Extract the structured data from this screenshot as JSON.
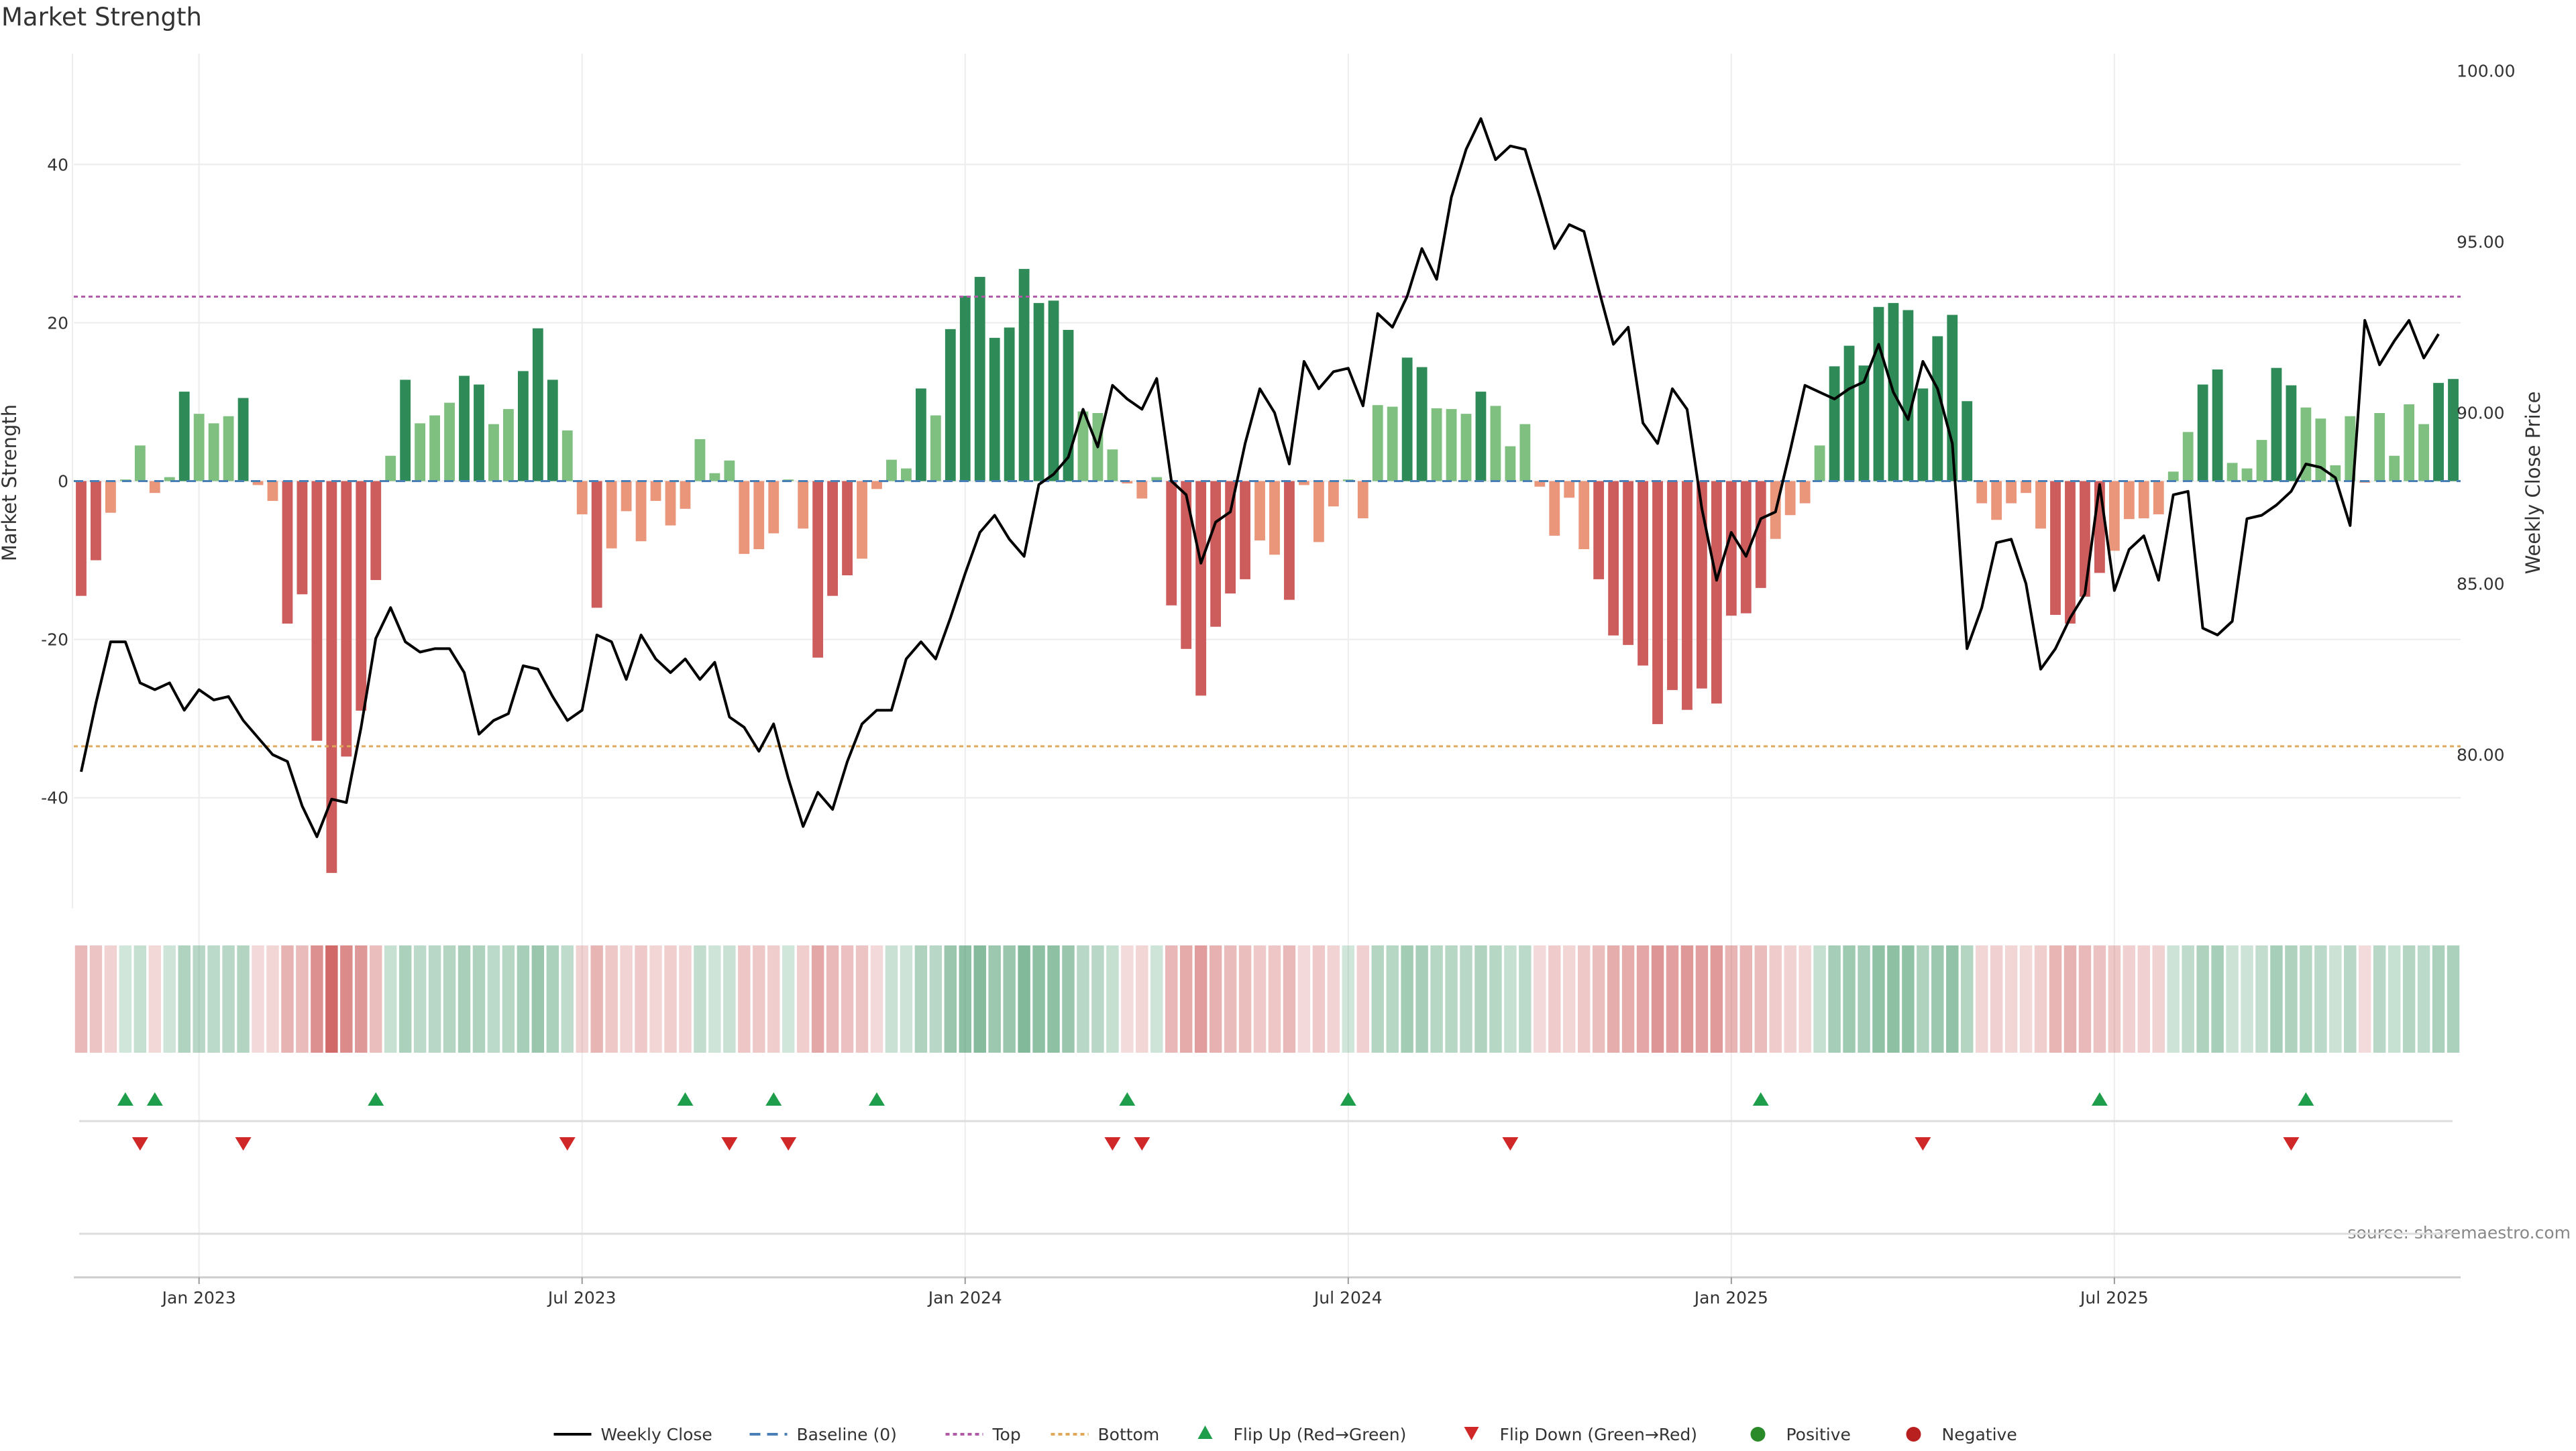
{
  "chart_data": {
    "type": "bar",
    "title": "Market Strength",
    "ylabel_left": "Market Strength",
    "ylabel_right": "Weekly Close Price",
    "source": "source: sharemaestro.com",
    "ylim_left": [
      -54,
      54
    ],
    "ylim_right": [
      75.5,
      100.5
    ],
    "left_ticks": [
      {
        "v": 40,
        "label": "40"
      },
      {
        "v": 20,
        "label": "20"
      },
      {
        "v": 0,
        "label": "0"
      },
      {
        "v": -20,
        "label": "-20"
      },
      {
        "v": -40,
        "label": "-40"
      }
    ],
    "right_ticks": [
      {
        "v": 100,
        "label": "100.00"
      },
      {
        "v": 95,
        "label": "95.00"
      },
      {
        "v": 90,
        "label": "90.00"
      },
      {
        "v": 85,
        "label": "85.00"
      },
      {
        "v": 80,
        "label": "80.00"
      }
    ],
    "x_ticks": [
      {
        "i": 8,
        "label": "Jan 2023"
      },
      {
        "i": 34,
        "label": "Jul 2023"
      },
      {
        "i": 60,
        "label": "Jan 2024"
      },
      {
        "i": 86,
        "label": "Jul 2024"
      },
      {
        "i": 112,
        "label": "Jan 2025"
      },
      {
        "i": 138,
        "label": "Jul 2025"
      }
    ],
    "top_line": 23.3,
    "bottom_line": -33.5,
    "colors": {
      "strong_pos": "#2e8b57",
      "weak_pos": "#7fc080",
      "strong_neg": "#cd5c5c",
      "weak_neg": "#e9967a",
      "price_line": "#000000",
      "baseline": "#4a7fb5",
      "top": "#b05aa8",
      "bottom": "#e0a85a",
      "flip_up": "#1e9e4a",
      "flip_down": "#d02828",
      "positive": "#2a8a2a",
      "negative": "#b82020"
    },
    "strength": [
      -14.5,
      -10,
      -4,
      0.2,
      4.5,
      -1.5,
      0.5,
      11.3,
      8.5,
      7.3,
      8.2,
      10.5,
      -0.5,
      -2.5,
      -18,
      -14.3,
      -32.8,
      -49.5,
      -34.8,
      -29,
      -12.5,
      3.2,
      12.8,
      7.3,
      8.3,
      9.9,
      13.3,
      12.2,
      7.2,
      9.1,
      13.9,
      19.3,
      12.8,
      6.4,
      -4.2,
      -16,
      -8.5,
      -3.8,
      -7.6,
      -2.5,
      -5.6,
      -3.5,
      5.3,
      1,
      2.6,
      -9.2,
      -8.6,
      -6.6,
      0.2,
      -6,
      -22.3,
      -14.5,
      -11.9,
      -9.8,
      -1,
      2.7,
      1.6,
      11.7,
      8.3,
      19.2,
      23.4,
      25.8,
      18.1,
      19.4,
      26.8,
      22.5,
      22.8,
      19.1,
      8.8,
      8.6,
      4,
      -0.3,
      -2.2,
      0.5,
      -15.7,
      -21.2,
      -27.1,
      -18.4,
      -14.2,
      -12.4,
      -7.5,
      -9.3,
      -15,
      -0.5,
      -7.7,
      -3.2,
      0.2,
      -4.7,
      9.6,
      9.4,
      15.6,
      14.4,
      9.2,
      9.1,
      8.5,
      11.3,
      9.5,
      4.4,
      7.2,
      -0.7,
      -6.9,
      -2.1,
      -8.6,
      -12.4,
      -19.5,
      -20.7,
      -23.3,
      -30.7,
      -26.4,
      -28.9,
      -26.2,
      -28.1,
      -17,
      -16.7,
      -13.5,
      -7.3,
      -4.3,
      -2.8,
      4.5,
      14.5,
      17.1,
      14.6,
      22,
      22.5,
      21.6,
      11.7,
      18.3,
      21,
      10.1,
      -2.8,
      -4.9,
      -2.8,
      -1.5,
      -6,
      -16.9,
      -18,
      -14.6,
      -11.6,
      -8.8,
      -4.8,
      -4.7,
      -4.2,
      1.2,
      6.2,
      12.2,
      14.1,
      2.3,
      1.6,
      5.2,
      14.3,
      12.1,
      9.3,
      7.9,
      2,
      8.2,
      -0.2,
      8.6,
      3.2,
      9.7,
      7.2,
      12.4,
      12.9
    ],
    "price": [
      79.5,
      81.5,
      83.3,
      83.3,
      82.1,
      81.9,
      82.1,
      81.3,
      81.9,
      81.6,
      81.7,
      81.0,
      80.5,
      80.0,
      79.8,
      78.5,
      77.6,
      78.7,
      78.6,
      80.8,
      83.4,
      84.3,
      83.3,
      83.0,
      83.1,
      83.1,
      82.4,
      80.6,
      81.0,
      81.2,
      82.6,
      82.5,
      81.7,
      81.0,
      81.3,
      83.5,
      83.3,
      82.2,
      83.5,
      82.8,
      82.4,
      82.8,
      82.2,
      82.7,
      81.1,
      80.8,
      80.1,
      80.9,
      79.3,
      77.9,
      78.9,
      78.4,
      79.8,
      80.9,
      81.3,
      81.3,
      82.8,
      83.3,
      82.8,
      84.0,
      85.3,
      86.5,
      87.0,
      86.3,
      85.8,
      87.9,
      88.2,
      88.7,
      90.1,
      89.0,
      90.8,
      90.4,
      90.1,
      91.0,
      88.0,
      87.6,
      85.6,
      86.8,
      87.1,
      89.1,
      90.7,
      90.0,
      88.5,
      91.5,
      90.7,
      91.2,
      91.3,
      90.2,
      92.9,
      92.5,
      93.4,
      94.8,
      93.9,
      96.3,
      97.7,
      98.6,
      97.4,
      97.8,
      97.7,
      96.3,
      94.8,
      95.5,
      95.3,
      93.6,
      92.0,
      92.5,
      89.7,
      89.1,
      90.7,
      90.1,
      87.2,
      85.1,
      86.5,
      85.8,
      86.9,
      87.1,
      88.9,
      90.8,
      90.6,
      90.4,
      90.7,
      90.9,
      92.0,
      90.6,
      89.8,
      91.5,
      90.7,
      89.1,
      83.1,
      84.3,
      86.2,
      86.3,
      85.0,
      82.5,
      83.1,
      84.0,
      84.7,
      87.9,
      84.8,
      86.0,
      86.4,
      85.1,
      87.6,
      87.7,
      83.7,
      83.5,
      83.9,
      86.9,
      87.0,
      87.3,
      87.7,
      88.5,
      88.4,
      88.1,
      86.7,
      92.7,
      91.4,
      92.1,
      92.7,
      91.6,
      92.3
    ]
  },
  "flip_up_index": [
    3,
    5,
    20,
    41,
    47,
    54,
    71,
    86,
    114,
    137,
    151
  ],
  "flip_down_index": [
    4,
    11,
    33,
    44,
    48,
    70,
    72,
    97,
    125,
    150
  ],
  "legend": [
    {
      "label": "Weekly Close",
      "kind": "line-solid",
      "color": "#000000"
    },
    {
      "label": "Baseline (0)",
      "kind": "line-dash",
      "color": "#4a7fb5"
    },
    {
      "label": "Top",
      "kind": "line-dot",
      "color": "#b05aa8"
    },
    {
      "label": "Bottom",
      "kind": "line-dot",
      "color": "#e0a85a"
    },
    {
      "label": "Flip Up (Red→Green)",
      "kind": "tri-up",
      "color": "#1e9e4a"
    },
    {
      "label": "Flip Down (Green→Red)",
      "kind": "tri-down",
      "color": "#d02828"
    },
    {
      "label": "Positive",
      "kind": "dot",
      "color": "#2a8a2a"
    },
    {
      "label": "Negative",
      "kind": "dot",
      "color": "#b82020"
    }
  ]
}
